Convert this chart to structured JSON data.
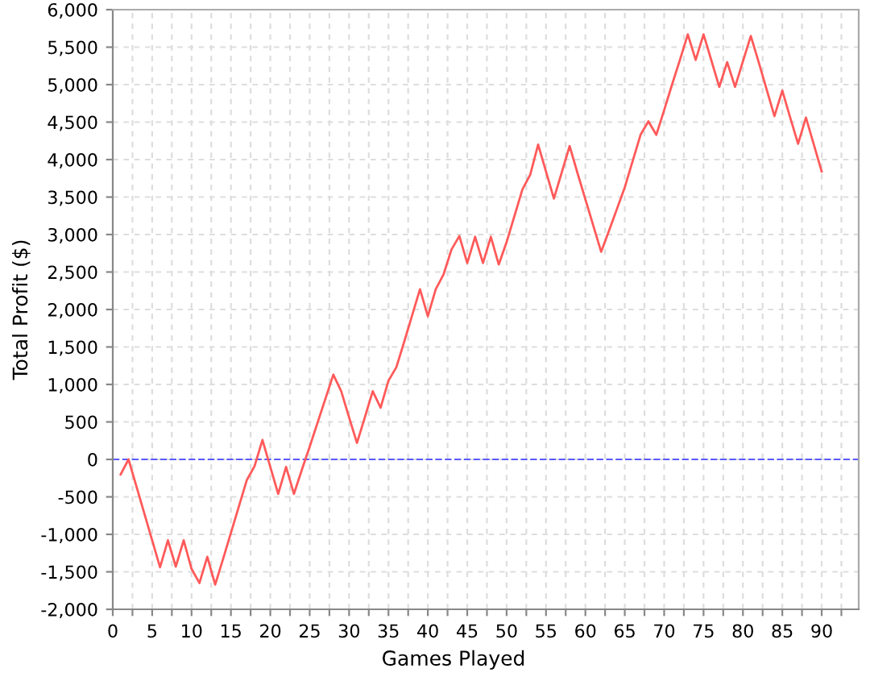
{
  "chart_data": {
    "type": "line",
    "xlabel": "Games Played",
    "ylabel": "Total Profit ($)",
    "x": [
      1,
      2,
      3,
      4,
      5,
      6,
      7,
      8,
      9,
      10,
      11,
      12,
      13,
      14,
      15,
      16,
      17,
      18,
      19,
      20,
      21,
      22,
      23,
      24,
      25,
      26,
      27,
      28,
      29,
      30,
      31,
      32,
      33,
      34,
      35,
      36,
      37,
      38,
      39,
      40,
      41,
      42,
      43,
      44,
      45,
      46,
      47,
      48,
      49,
      50,
      51,
      52,
      53,
      54,
      55,
      56,
      57,
      58,
      59,
      60,
      61,
      62,
      63,
      64,
      65,
      66,
      67,
      68,
      69,
      70,
      71,
      72,
      73,
      74,
      75,
      76,
      77,
      78,
      79,
      80,
      81,
      82,
      83,
      84,
      85,
      86,
      87,
      88,
      89,
      90
    ],
    "series": [
      {
        "color": "#ff5a5a",
        "values": [
          -200,
          0,
          -360,
          -720,
          -1080,
          -1440,
          -1080,
          -1430,
          -1080,
          -1460,
          -1650,
          -1300,
          -1670,
          -1330,
          -980,
          -630,
          -280,
          -90,
          260,
          -100,
          -460,
          -100,
          -460,
          -140,
          170,
          490,
          810,
          1130,
          910,
          560,
          220,
          560,
          910,
          690,
          1050,
          1230,
          1570,
          1920,
          2270,
          1910,
          2270,
          2470,
          2800,
          2980,
          2620,
          2970,
          2620,
          2970,
          2600,
          2900,
          3250,
          3600,
          3800,
          4200,
          3840,
          3480,
          3830,
          4180,
          3820,
          3470,
          3120,
          2770,
          3050,
          3340,
          3630,
          3980,
          4330,
          4510,
          4330,
          4660,
          5000,
          5330,
          5670,
          5330,
          5670,
          5320,
          4970,
          5300,
          4970,
          5310,
          5650,
          5300,
          4940,
          4580,
          4920,
          4560,
          4210,
          4560,
          4200,
          3840
        ]
      }
    ],
    "xlim": [
      0,
      94.7
    ],
    "xticks": [
      0,
      {
        "value": 2.5,
        "label": null
      },
      5,
      {
        "value": 7.5,
        "label": null
      },
      10,
      {
        "value": 12.5,
        "label": null
      },
      15,
      {
        "value": 17.5,
        "label": null
      },
      20,
      {
        "value": 22.5,
        "label": null
      },
      25,
      {
        "value": 27.5,
        "label": null
      },
      30,
      {
        "value": 32.5,
        "label": null
      },
      35,
      {
        "value": 37.5,
        "label": null
      },
      40,
      {
        "value": 42.5,
        "label": null
      },
      45,
      {
        "value": 47.5,
        "label": null
      },
      50,
      {
        "value": 52.5,
        "label": null
      },
      55,
      {
        "value": 57.5,
        "label": null
      },
      60,
      {
        "value": 62.5,
        "label": null
      },
      65,
      {
        "value": 67.5,
        "label": null
      },
      70,
      {
        "value": 72.5,
        "label": null
      },
      75,
      {
        "value": 77.5,
        "label": null
      },
      80,
      {
        "value": 82.5,
        "label": null
      },
      85,
      {
        "value": 87.5,
        "label": null
      },
      90,
      {
        "value": 92.5,
        "label": null
      }
    ],
    "ylim": [
      -2000,
      6000
    ],
    "yticks": [
      {
        "value": -2000,
        "label": "-2,000"
      },
      {
        "value": -1500,
        "label": "-1,500"
      },
      {
        "value": -1000,
        "label": "-1,000"
      },
      -500,
      0,
      500,
      {
        "value": 1000,
        "label": "1,000"
      },
      {
        "value": 1500,
        "label": "1,500"
      },
      {
        "value": 2000,
        "label": "2,000"
      },
      {
        "value": 2500,
        "label": "2,500"
      },
      {
        "value": 3000,
        "label": "3,000"
      },
      {
        "value": 3500,
        "label": "3,500"
      },
      {
        "value": 4000,
        "label": "4,000"
      },
      {
        "value": 4500,
        "label": "4,500"
      },
      {
        "value": 5000,
        "label": "5,000"
      },
      {
        "value": 5500,
        "label": "5,500"
      },
      {
        "value": 6000,
        "label": "6,000"
      }
    ],
    "grid": true,
    "marker": "none",
    "line_style": "solid",
    "ref_lines": [
      {
        "axis": "y",
        "value": 0,
        "color": "#5a5aff",
        "line_style": "dashed"
      }
    ]
  }
}
